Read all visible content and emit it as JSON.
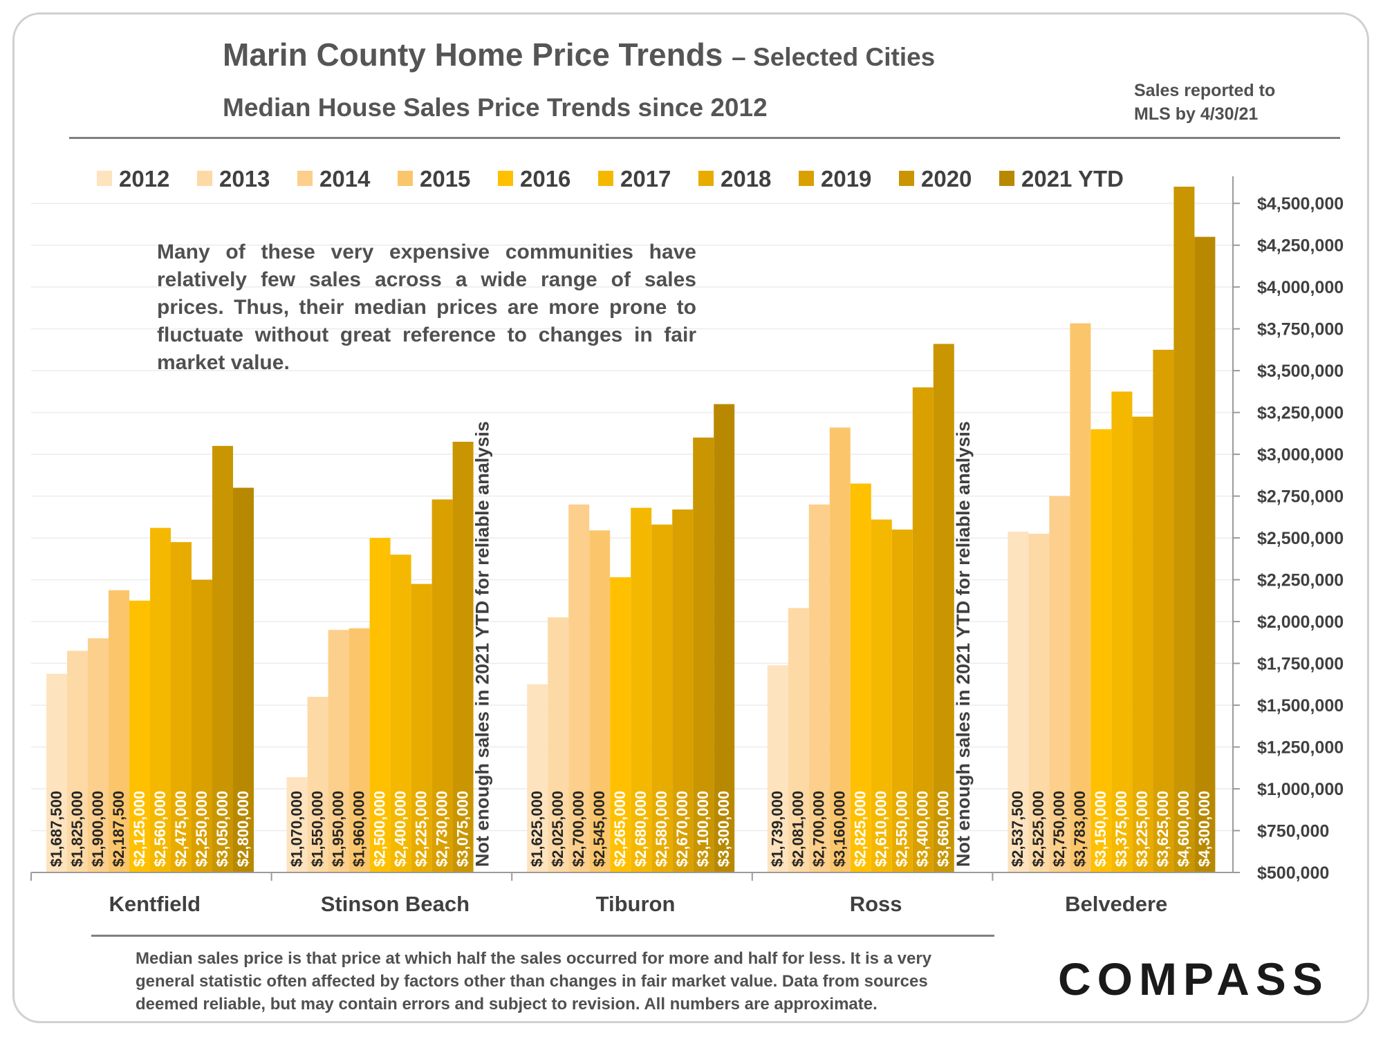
{
  "title": "Marin County Home Price Trends",
  "title_suffix": "– Selected Cities",
  "subtitle": "Median House Sales Price Trends since 2012",
  "top_note": "Sales reported to\nMLS by 4/30/21",
  "explanation": "Many of these very expensive communities have relatively few sales across a wide range of sales prices. Thus, their median prices are more prone to fluctuate without great reference to changes in fair market value.",
  "footnote": "Median sales price is that price at which half the sales occurred for more and half for less. It is a very general statistic often affected by factors other than changes in fair market value. Data from sources deemed reliable, but may contain errors and subject to revision. All numbers are approximate.",
  "logo": "COMPASS",
  "colors": {
    "2012": "#fde3be",
    "2013": "#fdd9a6",
    "2014": "#fccf8c",
    "2015": "#fbc66b",
    "2016": "#ffc000",
    "2017": "#f5b800",
    "2018": "#e8ac00",
    "2019": "#d9a000",
    "2020": "#c99500",
    "2021 YTD": "#b88900"
  },
  "chart_data": {
    "type": "bar",
    "categories": [
      "Kentfield",
      "Stinson Beach",
      "Tiburon",
      "Ross",
      "Belvedere"
    ],
    "series": [
      {
        "name": "2012",
        "values": [
          1687500,
          1070000,
          1625000,
          1739000,
          2537500
        ]
      },
      {
        "name": "2013",
        "values": [
          1825000,
          1550000,
          2025000,
          2081000,
          2525000
        ]
      },
      {
        "name": "2014",
        "values": [
          1900000,
          1950000,
          2700000,
          2700000,
          2750000
        ]
      },
      {
        "name": "2015",
        "values": [
          2187500,
          1960000,
          2545000,
          3160000,
          3783000
        ]
      },
      {
        "name": "2016",
        "values": [
          2125000,
          2500000,
          2265000,
          2825000,
          3150000
        ]
      },
      {
        "name": "2017",
        "values": [
          2560000,
          2400000,
          2680000,
          2610000,
          3375000
        ]
      },
      {
        "name": "2018",
        "values": [
          2475000,
          2225000,
          2580000,
          2550000,
          3225000
        ]
      },
      {
        "name": "2019",
        "values": [
          2250000,
          2730000,
          2670000,
          3400000,
          3625000
        ]
      },
      {
        "name": "2020",
        "values": [
          3050000,
          3075000,
          3100000,
          3660000,
          4600000
        ]
      },
      {
        "name": "2021 YTD",
        "values": [
          2800000,
          null,
          3300000,
          null,
          4300000
        ]
      }
    ],
    "value_labels": [
      [
        "$1,687,500",
        "$1,825,000",
        "$1,900,000",
        "$2,187,500",
        "$2,125,000",
        "$2,560,000",
        "$2,475,000",
        "$2,250,000",
        "$3,050,000",
        "$2,800,000"
      ],
      [
        "$1,070,000",
        "$1,550,000",
        "$1,950,000",
        "$1,960,000",
        "$2,500,000",
        "$2,400,000",
        "$2,225,000",
        "$2,730,000",
        "$3,075,000"
      ],
      [
        "$1,625,000",
        "$2,025,000",
        "$2,700,000",
        "$2,545,000",
        "$2,265,000",
        "$2,680,000",
        "$2,580,000",
        "$2,670,000",
        "$3,100,000",
        "$3,300,000"
      ],
      [
        "$1,739,000",
        "$2,081,000",
        "$2,700,000",
        "$3,160,000",
        "$2,825,000",
        "$2,610,000",
        "$2,550,000",
        "$3,400,000",
        "$3,660,000"
      ],
      [
        "$2,537,500",
        "$2,525,000",
        "$2,750,000",
        "$3,783,000",
        "$3,150,000",
        "$3,375,000",
        "$3,225,000",
        "$3,625,000",
        "$4,600,000",
        "$4,300,000"
      ]
    ],
    "missing_note": "Not enough sales in 2021 YTD for reliable analysis",
    "y_ticks": [
      "$500,000",
      "$750,000",
      "$1,000,000",
      "$1,250,000",
      "$1,500,000",
      "$1,750,000",
      "$2,000,000",
      "$2,250,000",
      "$2,500,000",
      "$2,750,000",
      "$3,000,000",
      "$3,250,000",
      "$3,500,000",
      "$3,750,000",
      "$4,000,000",
      "$4,250,000",
      "$4,500,000"
    ],
    "ylim": [
      500000,
      4600000
    ],
    "y_axis_side": "right",
    "legend_position": "top",
    "grid": true
  }
}
